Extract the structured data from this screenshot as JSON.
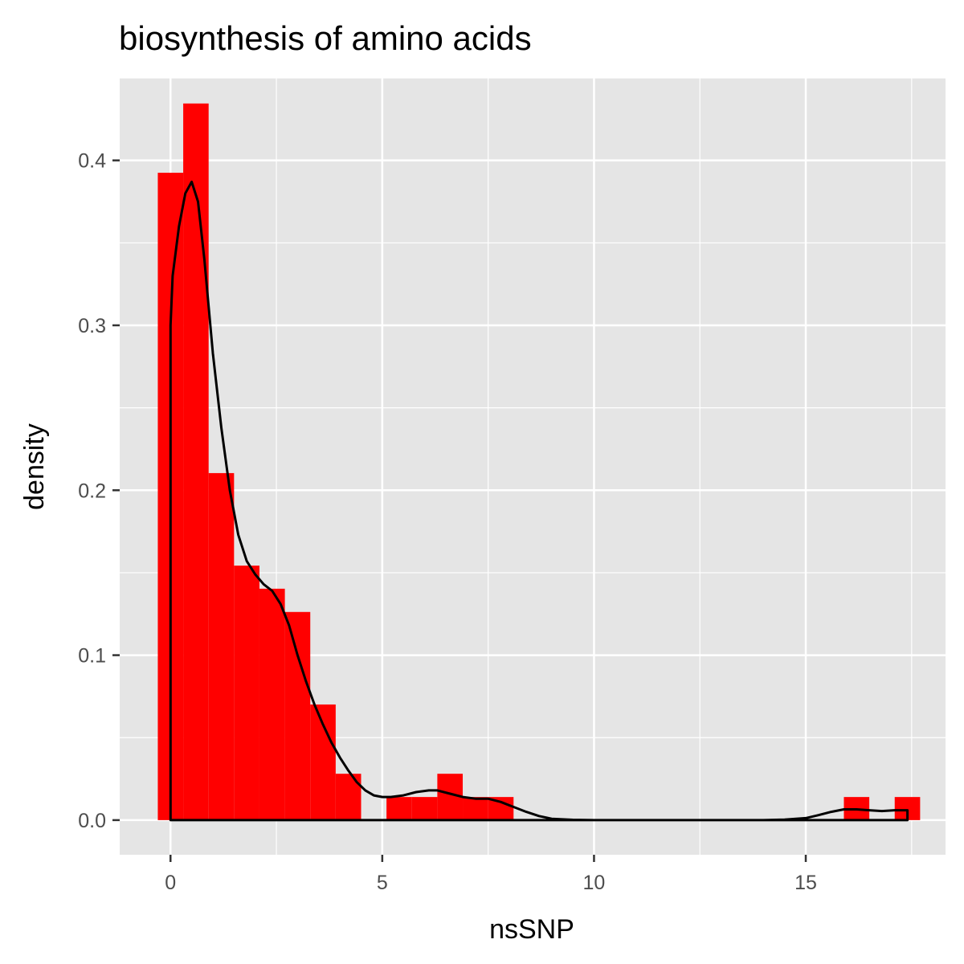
{
  "chart_data": {
    "type": "bar",
    "subtype": "histogram-with-density",
    "title": "biosynthesis of amino acids",
    "xlabel": "nsSNP",
    "ylabel": "density",
    "xlim": [
      -1.2,
      18.3
    ],
    "ylim": [
      -0.021,
      0.45
    ],
    "x_ticks": [
      0,
      5,
      10,
      15
    ],
    "x_tick_labels": [
      "0",
      "5",
      "10",
      "15"
    ],
    "y_ticks": [
      0.0,
      0.1,
      0.2,
      0.3,
      0.4
    ],
    "y_tick_labels": [
      "0.0",
      "0.1",
      "0.2",
      "0.3",
      "0.4"
    ],
    "grid": true,
    "bin_width": 0.6,
    "bins": [
      {
        "x0": -0.3,
        "x1": 0.3,
        "density": 0.3925
      },
      {
        "x0": 0.3,
        "x1": 0.9,
        "density": 0.4345
      },
      {
        "x0": 0.9,
        "x1": 1.5,
        "density": 0.2104
      },
      {
        "x0": 1.5,
        "x1": 2.1,
        "density": 0.1543
      },
      {
        "x0": 2.1,
        "x1": 2.7,
        "density": 0.1403
      },
      {
        "x0": 2.7,
        "x1": 3.3,
        "density": 0.1262
      },
      {
        "x0": 3.3,
        "x1": 3.9,
        "density": 0.0701
      },
      {
        "x0": 3.9,
        "x1": 4.5,
        "density": 0.0281
      },
      {
        "x0": 4.5,
        "x1": 5.1,
        "density": 0.0
      },
      {
        "x0": 5.1,
        "x1": 5.7,
        "density": 0.014
      },
      {
        "x0": 5.7,
        "x1": 6.3,
        "density": 0.014
      },
      {
        "x0": 6.3,
        "x1": 6.9,
        "density": 0.0281
      },
      {
        "x0": 6.9,
        "x1": 7.5,
        "density": 0.014
      },
      {
        "x0": 7.5,
        "x1": 8.1,
        "density": 0.014
      },
      {
        "x0": 15.9,
        "x1": 16.5,
        "density": 0.014
      },
      {
        "x0": 17.1,
        "x1": 17.7,
        "density": 0.014
      }
    ],
    "density_curve": {
      "x": [
        0.0,
        0.05,
        0.2,
        0.35,
        0.5,
        0.65,
        0.8,
        1.0,
        1.2,
        1.4,
        1.6,
        1.8,
        2.0,
        2.2,
        2.4,
        2.6,
        2.8,
        3.0,
        3.2,
        3.4,
        3.6,
        3.8,
        4.0,
        4.2,
        4.4,
        4.6,
        4.8,
        5.0,
        5.2,
        5.5,
        5.8,
        6.1,
        6.3,
        6.6,
        6.9,
        7.2,
        7.5,
        7.8,
        8.1,
        8.4,
        8.7,
        9.0,
        9.5,
        10.0,
        11.0,
        12.0,
        13.0,
        14.0,
        14.5,
        15.0,
        15.3,
        15.6,
        15.9,
        16.2,
        16.5,
        16.8,
        17.1,
        17.4
      ],
      "y": [
        0.3,
        0.33,
        0.36,
        0.38,
        0.387,
        0.375,
        0.34,
        0.283,
        0.238,
        0.2,
        0.173,
        0.157,
        0.149,
        0.143,
        0.139,
        0.131,
        0.118,
        0.1,
        0.084,
        0.07,
        0.058,
        0.047,
        0.038,
        0.03,
        0.023,
        0.018,
        0.015,
        0.014,
        0.014,
        0.015,
        0.017,
        0.018,
        0.018,
        0.016,
        0.014,
        0.013,
        0.013,
        0.011,
        0.008,
        0.005,
        0.0025,
        0.0008,
        0.0002,
        0.0,
        0.0,
        0.0,
        0.0,
        0.0,
        0.0003,
        0.0012,
        0.003,
        0.005,
        0.0065,
        0.0065,
        0.006,
        0.0055,
        0.006,
        0.006
      ]
    },
    "colors": {
      "bar_fill": "#ff0000",
      "curve_stroke": "#000000",
      "panel_background": "#e5e5e5",
      "grid": "#ffffff",
      "tick_label": "#4d4d4d"
    }
  }
}
